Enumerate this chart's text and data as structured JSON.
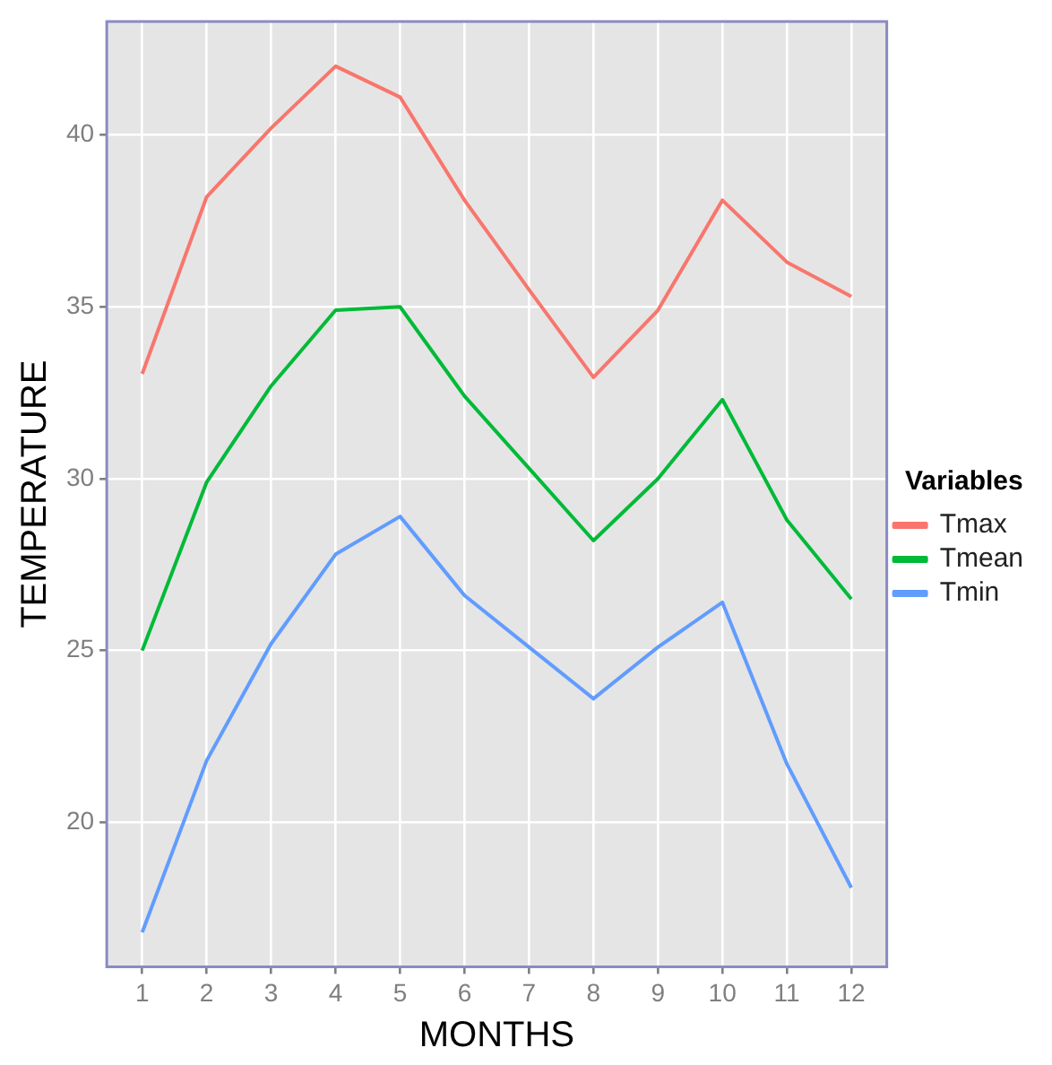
{
  "chart_data": {
    "type": "line",
    "xlabel": "MONTHS",
    "ylabel": "TEMPERATURE",
    "legend_title": "Variables",
    "x": [
      1,
      2,
      3,
      4,
      5,
      6,
      7,
      8,
      9,
      10,
      11,
      12
    ],
    "xlim": [
      0.45,
      12.55
    ],
    "xticks": [
      1,
      2,
      3,
      4,
      5,
      6,
      7,
      8,
      9,
      10,
      11,
      12
    ],
    "ylim": [
      15.8,
      43.3
    ],
    "yticks": [
      20,
      25,
      30,
      35,
      40
    ],
    "grid": true,
    "legend": "right",
    "marker": "none",
    "line_style": "solid",
    "series": [
      {
        "name": "Tmax",
        "color": "#f8766d",
        "values": [
          33.05,
          38.2,
          40.2,
          42.0,
          41.1,
          38.1,
          35.5,
          32.95,
          34.9,
          38.1,
          36.3,
          35.3
        ]
      },
      {
        "name": "Tmean",
        "color": "#00ba38",
        "values": [
          25.0,
          29.9,
          32.7,
          34.9,
          35.0,
          32.4,
          30.3,
          28.2,
          30.0,
          32.3,
          28.8,
          26.5
        ]
      },
      {
        "name": "Tmin",
        "color": "#619cff",
        "values": [
          16.8,
          21.8,
          25.2,
          27.8,
          28.9,
          26.6,
          25.1,
          23.6,
          25.1,
          26.4,
          21.7,
          18.1
        ]
      }
    ]
  }
}
